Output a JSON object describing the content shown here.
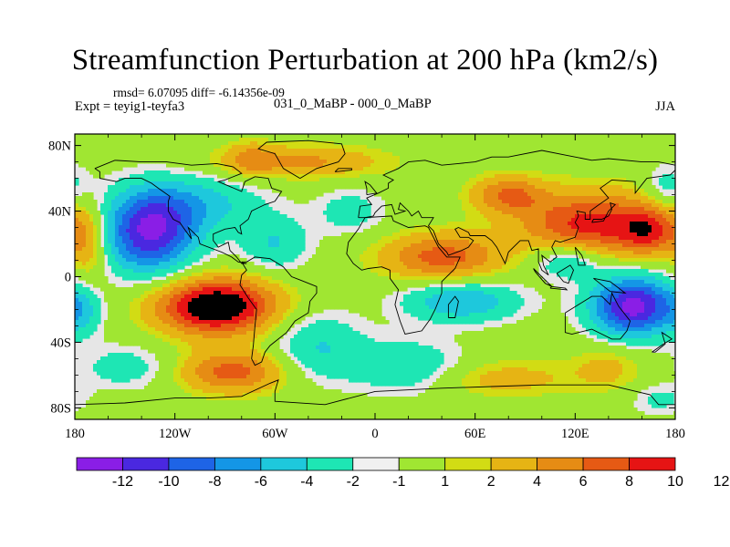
{
  "title": "Streamfunction Perturbation at 200 hPa (km2/s)",
  "stats": "rmsd= 6.07095 diff= -6.14356e-09",
  "left_label": "Expt = teyig1-teyfa3",
  "center_label": "031_0_MaBP - 000_0_MaBP",
  "right_label": "JJA",
  "lat_ticks": [
    "80N",
    "40N",
    "0",
    "40S",
    "80S"
  ],
  "lon_ticks": [
    "180",
    "120W",
    "60W",
    "0",
    "60E",
    "120E",
    "180"
  ],
  "colorbar": {
    "colors": [
      "#8a1ee6",
      "#4a28e0",
      "#1e64e6",
      "#1496e6",
      "#1ec8dc",
      "#1ee6b4",
      "#f0f0f0",
      "#a0e632",
      "#d2dc14",
      "#e6b414",
      "#e68c14",
      "#e65a14",
      "#e61414"
    ],
    "labels": [
      "-12",
      "-10",
      "-8",
      "-6",
      "-4",
      "-2",
      "-1",
      "1",
      "2",
      "4",
      "6",
      "8",
      "10",
      "12"
    ]
  },
  "field": {
    "background": "#e6e6e6",
    "blobs": [
      {
        "lon": -135,
        "lat": 28,
        "amp": -12.5,
        "slon": 20,
        "slat": 18
      },
      {
        "lon": -100,
        "lat": 45,
        "amp": -4,
        "slon": 25,
        "slat": 12
      },
      {
        "lon": -95,
        "lat": -18,
        "amp": 13,
        "slon": 25,
        "slat": 12
      },
      {
        "lon": -85,
        "lat": -58,
        "amp": 7,
        "slon": 22,
        "slat": 9
      },
      {
        "lon": 155,
        "lat": -18,
        "amp": -13,
        "slon": 18,
        "slat": 13
      },
      {
        "lon": 130,
        "lat": 32,
        "amp": 9,
        "slon": 30,
        "slat": 14
      },
      {
        "lon": 80,
        "lat": 50,
        "amp": 6,
        "slon": 15,
        "slat": 8
      },
      {
        "lon": 165,
        "lat": 28,
        "amp": 6,
        "slon": 12,
        "slat": 10
      },
      {
        "lon": 40,
        "lat": 12,
        "amp": 7,
        "slon": 25,
        "slat": 10
      },
      {
        "lon": 52,
        "lat": -15,
        "amp": -6,
        "slon": 25,
        "slat": 9
      },
      {
        "lon": 75,
        "lat": -62,
        "amp": 3,
        "slon": 32,
        "slat": 8
      },
      {
        "lon": -45,
        "lat": 70,
        "amp": 4.5,
        "slon": 35,
        "slat": 7
      },
      {
        "lon": -75,
        "lat": 72,
        "amp": 3,
        "slon": 10,
        "slat": 7
      },
      {
        "lon": -60,
        "lat": 20,
        "amp": -4,
        "slon": 15,
        "slat": 12
      },
      {
        "lon": -35,
        "lat": -42,
        "amp": -4,
        "slon": 20,
        "slat": 15
      },
      {
        "lon": 20,
        "lat": -55,
        "amp": -4,
        "slon": 25,
        "slat": 12
      },
      {
        "lon": 115,
        "lat": 10,
        "amp": -5,
        "slon": 15,
        "slat": 8
      },
      {
        "lon": 140,
        "lat": -55,
        "amp": 2.5,
        "slon": 15,
        "slat": 10
      },
      {
        "lon": 170,
        "lat": -75,
        "amp": -2.5,
        "slon": 12,
        "slat": 7
      },
      {
        "lon": -172,
        "lat": 20,
        "amp": 4,
        "slon": 8,
        "slat": 16
      },
      {
        "lon": -175,
        "lat": -22,
        "amp": -3,
        "slon": 8,
        "slat": 10
      },
      {
        "lon": 175,
        "lat": 55,
        "amp": -3,
        "slon": 10,
        "slat": 10
      },
      {
        "lon": -150,
        "lat": -55,
        "amp": -3,
        "slon": 20,
        "slat": 10
      },
      {
        "lon": -15,
        "lat": 40,
        "amp": -3,
        "slon": 15,
        "slat": 10
      }
    ]
  },
  "coastlines": [
    [
      [
        -168,
        66
      ],
      [
        -156,
        71
      ],
      [
        -140,
        70
      ],
      [
        -125,
        70
      ],
      [
        -110,
        68
      ],
      [
        -95,
        69
      ],
      [
        -85,
        67
      ],
      [
        -80,
        63
      ],
      [
        -90,
        59
      ],
      [
        -94,
        58
      ],
      [
        -80,
        52
      ],
      [
        -78,
        58
      ],
      [
        -72,
        61
      ],
      [
        -64,
        60
      ],
      [
        -62,
        54
      ],
      [
        -56,
        52
      ],
      [
        -60,
        46
      ],
      [
        -66,
        44
      ],
      [
        -70,
        42
      ],
      [
        -74,
        40
      ],
      [
        -76,
        35
      ],
      [
        -81,
        31
      ],
      [
        -80,
        26
      ],
      [
        -82,
        27
      ],
      [
        -84,
        30
      ],
      [
        -90,
        29
      ],
      [
        -97,
        26
      ],
      [
        -97,
        22
      ],
      [
        -94,
        18
      ],
      [
        -88,
        21
      ],
      [
        -87,
        16
      ],
      [
        -83,
        12
      ],
      [
        -80,
        8
      ],
      [
        -77,
        8
      ],
      [
        -82,
        9
      ],
      [
        -86,
        12
      ],
      [
        -92,
        15
      ],
      [
        -105,
        20
      ],
      [
        -106,
        24
      ],
      [
        -112,
        30
      ],
      [
        -110,
        23
      ],
      [
        -115,
        30
      ],
      [
        -117,
        33
      ],
      [
        -121,
        35
      ],
      [
        -124,
        40
      ],
      [
        -124,
        46
      ],
      [
        -123,
        49
      ],
      [
        -130,
        54
      ],
      [
        -134,
        57
      ],
      [
        -140,
        60
      ],
      [
        -150,
        60
      ],
      [
        -155,
        58
      ],
      [
        -165,
        60
      ],
      [
        -165,
        64
      ],
      [
        -168,
        66
      ]
    ],
    [
      [
        -80,
        9
      ],
      [
        -77,
        9
      ],
      [
        -72,
        12
      ],
      [
        -63,
        11
      ],
      [
        -55,
        6
      ],
      [
        -50,
        0
      ],
      [
        -45,
        -2
      ],
      [
        -35,
        -6
      ],
      [
        -35,
        -10
      ],
      [
        -39,
        -15
      ],
      [
        -40,
        -22
      ],
      [
        -48,
        -27
      ],
      [
        -53,
        -34
      ],
      [
        -58,
        -38
      ],
      [
        -63,
        -42
      ],
      [
        -66,
        -46
      ],
      [
        -68,
        -52
      ],
      [
        -72,
        -54
      ],
      [
        -74,
        -50
      ],
      [
        -73,
        -42
      ],
      [
        -72,
        -30
      ],
      [
        -71,
        -20
      ],
      [
        -76,
        -13
      ],
      [
        -81,
        -5
      ],
      [
        -80,
        1
      ],
      [
        -77,
        4
      ],
      [
        -80,
        9
      ]
    ],
    [
      [
        -45,
        60
      ],
      [
        -55,
        66
      ],
      [
        -60,
        75
      ],
      [
        -70,
        78
      ],
      [
        -65,
        82
      ],
      [
        -40,
        83
      ],
      [
        -20,
        81
      ],
      [
        -18,
        75
      ],
      [
        -22,
        70
      ],
      [
        -35,
        66
      ],
      [
        -45,
        60
      ]
    ],
    [
      [
        -10,
        36
      ],
      [
        -9,
        43
      ],
      [
        -2,
        44
      ],
      [
        -5,
        48
      ],
      [
        2,
        51
      ],
      [
        8,
        54
      ],
      [
        8,
        57
      ],
      [
        11,
        59
      ],
      [
        5,
        62
      ],
      [
        14,
        66
      ],
      [
        20,
        70
      ],
      [
        30,
        71
      ],
      [
        40,
        68
      ],
      [
        50,
        69
      ],
      [
        60,
        70
      ],
      [
        70,
        73
      ],
      [
        80,
        73
      ],
      [
        100,
        77
      ],
      [
        115,
        74
      ],
      [
        130,
        71
      ],
      [
        140,
        72
      ],
      [
        160,
        70
      ],
      [
        170,
        70
      ],
      [
        180,
        68
      ],
      [
        180,
        65
      ],
      [
        177,
        62
      ],
      [
        163,
        60
      ],
      [
        156,
        51
      ],
      [
        156,
        58
      ],
      [
        142,
        59
      ],
      [
        135,
        54
      ],
      [
        140,
        48
      ],
      [
        133,
        43
      ],
      [
        129,
        40
      ],
      [
        129,
        35
      ],
      [
        126,
        35
      ],
      [
        126,
        39
      ],
      [
        121,
        40
      ],
      [
        122,
        37
      ],
      [
        120,
        33
      ],
      [
        122,
        30
      ],
      [
        120,
        24
      ],
      [
        111,
        21
      ],
      [
        108,
        22
      ],
      [
        106,
        18
      ],
      [
        109,
        12
      ],
      [
        105,
        9
      ],
      [
        100,
        13
      ],
      [
        101,
        7
      ],
      [
        104,
        1
      ],
      [
        100,
        4
      ],
      [
        98,
        9
      ],
      [
        98,
        17
      ],
      [
        94,
        16
      ],
      [
        92,
        22
      ],
      [
        87,
        22
      ],
      [
        80,
        15
      ],
      [
        78,
        8
      ],
      [
        73,
        18
      ],
      [
        70,
        22
      ],
      [
        66,
        25
      ],
      [
        57,
        25
      ],
      [
        56,
        27
      ],
      [
        50,
        30
      ],
      [
        48,
        29
      ],
      [
        51,
        24
      ],
      [
        56,
        24
      ],
      [
        59,
        22
      ],
      [
        56,
        18
      ],
      [
        52,
        16
      ],
      [
        44,
        13
      ],
      [
        43,
        15
      ],
      [
        38,
        20
      ],
      [
        35,
        28
      ],
      [
        32,
        31
      ],
      [
        35,
        36
      ],
      [
        28,
        36
      ],
      [
        26,
        40
      ],
      [
        22,
        37
      ],
      [
        20,
        40
      ],
      [
        15,
        45
      ],
      [
        14,
        41
      ],
      [
        18,
        40
      ],
      [
        12,
        38
      ],
      [
        10,
        44
      ],
      [
        4,
        43
      ],
      [
        0,
        39
      ],
      [
        -1,
        37
      ],
      [
        -6,
        36
      ],
      [
        -10,
        36
      ]
    ],
    [
      [
        -6,
        36
      ],
      [
        10,
        37
      ],
      [
        11,
        34
      ],
      [
        20,
        30
      ],
      [
        30,
        31
      ],
      [
        32,
        30
      ],
      [
        38,
        18
      ],
      [
        43,
        12
      ],
      [
        51,
        12
      ],
      [
        48,
        5
      ],
      [
        40,
        -3
      ],
      [
        40,
        -10
      ],
      [
        36,
        -20
      ],
      [
        33,
        -26
      ],
      [
        28,
        -33
      ],
      [
        18,
        -35
      ],
      [
        15,
        -27
      ],
      [
        12,
        -17
      ],
      [
        14,
        -8
      ],
      [
        9,
        -1
      ],
      [
        9,
        4
      ],
      [
        4,
        6
      ],
      [
        -4,
        5
      ],
      [
        -8,
        4
      ],
      [
        -13,
        8
      ],
      [
        -17,
        14
      ],
      [
        -16,
        21
      ],
      [
        -10,
        29
      ],
      [
        -6,
        36
      ]
    ],
    [
      [
        44,
        -25
      ],
      [
        48,
        -25
      ],
      [
        50,
        -15
      ],
      [
        48,
        -12
      ],
      [
        44,
        -17
      ],
      [
        44,
        -25
      ]
    ],
    [
      [
        114,
        -22
      ],
      [
        114,
        -34
      ],
      [
        118,
        -35
      ],
      [
        130,
        -32
      ],
      [
        136,
        -35
      ],
      [
        142,
        -38
      ],
      [
        147,
        -38
      ],
      [
        151,
        -33
      ],
      [
        153,
        -27
      ],
      [
        146,
        -18
      ],
      [
        142,
        -10
      ],
      [
        141,
        -17
      ],
      [
        136,
        -12
      ],
      [
        130,
        -12
      ],
      [
        122,
        -17
      ],
      [
        114,
        -22
      ]
    ],
    [
      [
        -5,
        50
      ],
      [
        1,
        51
      ],
      [
        -3,
        56
      ],
      [
        -6,
        58
      ],
      [
        -5,
        54
      ],
      [
        -5,
        50
      ]
    ],
    [
      [
        -24,
        64
      ],
      [
        -14,
        65
      ],
      [
        -14,
        66
      ],
      [
        -22,
        66
      ],
      [
        -24,
        64
      ]
    ],
    [
      [
        130,
        33
      ],
      [
        131,
        35
      ],
      [
        136,
        35
      ],
      [
        140,
        37
      ],
      [
        142,
        41
      ],
      [
        141,
        45
      ],
      [
        144,
        44
      ],
      [
        140,
        40
      ],
      [
        137,
        34
      ],
      [
        130,
        33
      ]
    ],
    [
      [
        95,
        5
      ],
      [
        103,
        -3
      ],
      [
        106,
        -6
      ],
      [
        102,
        -4
      ],
      [
        96,
        3
      ],
      [
        95,
        5
      ]
    ],
    [
      [
        105,
        -7
      ],
      [
        115,
        -8
      ],
      [
        114,
        -7
      ],
      [
        106,
        -6
      ],
      [
        105,
        -7
      ]
    ],
    [
      [
        109,
        2
      ],
      [
        113,
        -3
      ],
      [
        116,
        -4
      ],
      [
        119,
        4
      ],
      [
        117,
        7
      ],
      [
        109,
        2
      ]
    ],
    [
      [
        131,
        -1
      ],
      [
        141,
        -3
      ],
      [
        150,
        -10
      ],
      [
        141,
        -9
      ],
      [
        131,
        -1
      ]
    ],
    [
      [
        166,
        -46
      ],
      [
        173,
        -41
      ],
      [
        178,
        -38
      ],
      [
        175,
        -36
      ],
      [
        172,
        -34
      ],
      [
        174,
        -41
      ],
      [
        168,
        -46
      ],
      [
        166,
        -46
      ]
    ],
    [
      [
        120,
        18
      ],
      [
        124,
        13
      ],
      [
        126,
        7
      ],
      [
        122,
        7
      ],
      [
        120,
        18
      ]
    ],
    [
      [
        -180,
        -78
      ],
      [
        -150,
        -77
      ],
      [
        -120,
        -74
      ],
      [
        -100,
        -74
      ],
      [
        -80,
        -73
      ],
      [
        -63,
        -65
      ],
      [
        -58,
        -63
      ],
      [
        -60,
        -70
      ],
      [
        -60,
        -76
      ],
      [
        -30,
        -78
      ],
      [
        0,
        -70
      ],
      [
        40,
        -68
      ],
      [
        70,
        -67
      ],
      [
        100,
        -66
      ],
      [
        140,
        -66
      ],
      [
        165,
        -72
      ],
      [
        170,
        -78
      ],
      [
        180,
        -78
      ]
    ]
  ]
}
